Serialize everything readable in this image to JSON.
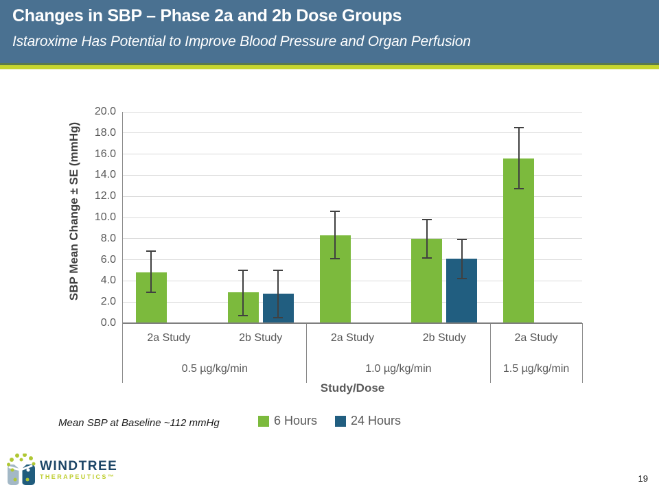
{
  "header": {
    "title": "Changes in SBP – Phase 2a and 2b Dose Groups",
    "subtitle": "Istaroxime Has Potential to Improve Blood Pressure and Organ Perfusion"
  },
  "colors": {
    "header_bg": "#4A7191",
    "accent_dark_green": "#5C7A4A",
    "accent_bright_green": "#C6D52F",
    "bar_green": "#7CBA3D",
    "bar_blue": "#215E80",
    "gridline": "#D9D9D9",
    "axis_gray": "#7F7F7F",
    "label_gray": "#595959",
    "error_bar": "#404040"
  },
  "chart_data": {
    "type": "bar",
    "title": "",
    "ylabel": "SBP Mean Change ± SE (mmHg)",
    "xlabel": "Study/Dose",
    "ylim": [
      0,
      20
    ],
    "ytick_step": 2,
    "grid": true,
    "legend_position": "bottom",
    "series_names": [
      "6 Hours",
      "24 Hours"
    ],
    "groups": [
      {
        "dose": "0.5 µg/kg/min",
        "categories": [
          {
            "label": "2a Study",
            "bars": [
              {
                "series": "6 Hours",
                "value": 4.8,
                "err_low": 2.9,
                "err_high": 6.8
              }
            ]
          },
          {
            "label": "2b Study",
            "bars": [
              {
                "series": "6 Hours",
                "value": 2.9,
                "err_low": 0.7,
                "err_high": 5.0
              },
              {
                "series": "24 Hours",
                "value": 2.8,
                "err_low": 0.5,
                "err_high": 5.0
              }
            ]
          }
        ]
      },
      {
        "dose": "1.0 µg/kg/min",
        "categories": [
          {
            "label": "2a Study",
            "bars": [
              {
                "series": "6 Hours",
                "value": 8.3,
                "err_low": 6.1,
                "err_high": 10.6
              }
            ]
          },
          {
            "label": "2b Study",
            "bars": [
              {
                "series": "6 Hours",
                "value": 8.0,
                "err_low": 6.2,
                "err_high": 9.8
              },
              {
                "series": "24 Hours",
                "value": 6.1,
                "err_low": 4.2,
                "err_high": 7.9
              }
            ]
          }
        ]
      },
      {
        "dose": "1.5 µg/kg/min",
        "categories": [
          {
            "label": "2a Study",
            "bars": [
              {
                "series": "6 Hours",
                "value": 15.6,
                "err_low": 12.7,
                "err_high": 18.5
              }
            ]
          }
        ]
      }
    ]
  },
  "legend": [
    {
      "label": "6 Hours",
      "color": "#7CBA3D"
    },
    {
      "label": "24 Hours",
      "color": "#215E80"
    }
  ],
  "footnote": "Mean SBP at Baseline ~112 mmHg",
  "footer": {
    "logo_wordmark": "WINDTREE",
    "logo_subtext": "THERAPEUTICS™",
    "page_number": "19"
  }
}
